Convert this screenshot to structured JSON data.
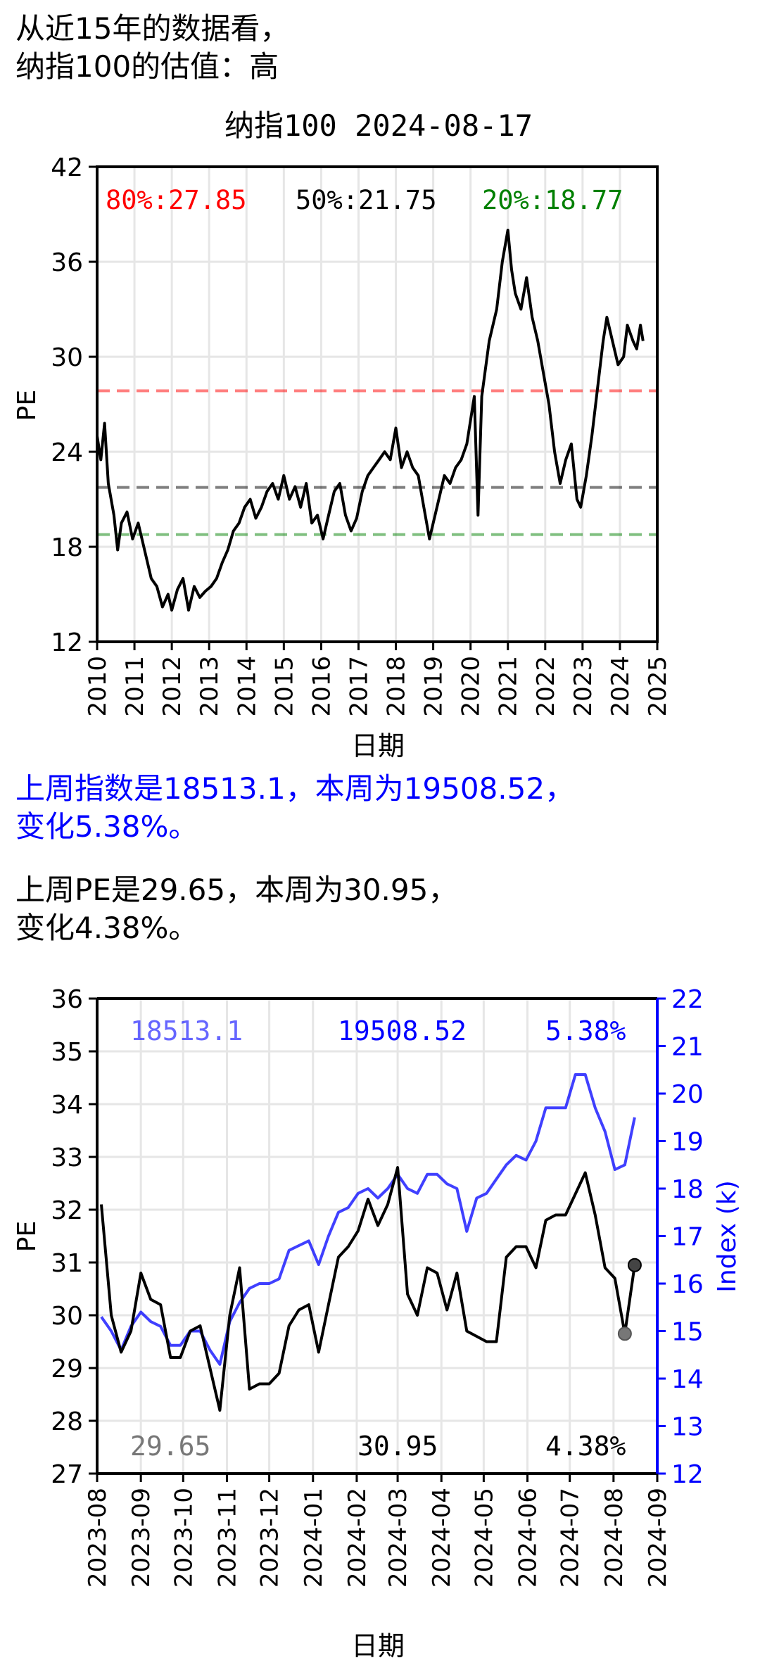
{
  "intro": {
    "line1": "从近15年的数据看，",
    "line2": "纳指100的估值：高"
  },
  "index_summary": {
    "line1": "上周指数是18513.1，本周为19508.52，",
    "line2": "变化5.38%。"
  },
  "pe_summary": {
    "line1": "上周PE是29.65，本周为30.95，",
    "line2": "变化4.38%。"
  },
  "colors": {
    "pe": "#000000",
    "index": "#0000ff",
    "p80": "#ff0000",
    "p50": "#000000",
    "p20": "#008000"
  },
  "chart_data": [
    {
      "type": "line",
      "title": "纳指100 2024-08-17",
      "xlabel": "日期",
      "ylabel": "PE",
      "xlim": [
        2010,
        2025
      ],
      "ylim": [
        12,
        42
      ],
      "yticks": [
        12,
        18,
        24,
        30,
        36,
        42
      ],
      "xticks": [
        "2010",
        "2011",
        "2012",
        "2013",
        "2014",
        "2015",
        "2016",
        "2017",
        "2018",
        "2019",
        "2020",
        "2021",
        "2022",
        "2023",
        "2024",
        "2025"
      ],
      "grid": true,
      "percentiles": [
        {
          "label": "80%:27.85",
          "value": 27.85
        },
        {
          "label": "50%:21.75",
          "value": 21.75
        },
        {
          "label": "20%:18.77",
          "value": 18.77
        }
      ],
      "series": [
        {
          "x": [
            2010.0,
            2010.1,
            2010.2,
            2010.3,
            2010.45,
            2010.55,
            2010.65,
            2010.8,
            2010.95,
            2011.1,
            2011.3,
            2011.45,
            2011.6,
            2011.75,
            2011.9,
            2012.0,
            2012.15,
            2012.3,
            2012.45,
            2012.6,
            2012.75,
            2012.9,
            2013.05,
            2013.2,
            2013.35,
            2013.5,
            2013.65,
            2013.8,
            2013.95,
            2014.1,
            2014.25,
            2014.4,
            2014.55,
            2014.7,
            2014.85,
            2015.0,
            2015.15,
            2015.3,
            2015.45,
            2015.6,
            2015.75,
            2015.9,
            2016.05,
            2016.2,
            2016.35,
            2016.5,
            2016.65,
            2016.8,
            2016.95,
            2017.1,
            2017.25,
            2017.4,
            2017.55,
            2017.7,
            2017.85,
            2018.0,
            2018.15,
            2018.3,
            2018.45,
            2018.6,
            2018.75,
            2018.9,
            2019.0,
            2019.15,
            2019.3,
            2019.45,
            2019.6,
            2019.75,
            2019.9,
            2020.0,
            2020.1,
            2020.2,
            2020.3,
            2020.5,
            2020.7,
            2020.85,
            2021.0,
            2021.1,
            2021.2,
            2021.35,
            2021.5,
            2021.65,
            2021.8,
            2021.95,
            2022.1,
            2022.25,
            2022.4,
            2022.55,
            2022.7,
            2022.85,
            2022.95,
            2023.1,
            2023.25,
            2023.4,
            2023.55,
            2023.65,
            2023.8,
            2023.95,
            2024.1,
            2024.2,
            2024.35,
            2024.45,
            2024.55,
            2024.62
          ],
          "y": [
            25.0,
            23.5,
            25.8,
            22.0,
            20.0,
            17.8,
            19.5,
            20.2,
            18.5,
            19.5,
            17.5,
            16.0,
            15.5,
            14.2,
            15.0,
            14.0,
            15.3,
            16.0,
            14.0,
            15.5,
            14.8,
            15.2,
            15.5,
            16.0,
            17.0,
            17.8,
            19.0,
            19.5,
            20.5,
            21.0,
            19.8,
            20.5,
            21.5,
            22.0,
            21.0,
            22.5,
            21.0,
            21.8,
            20.5,
            22.0,
            19.5,
            20.0,
            18.5,
            20.0,
            21.5,
            22.0,
            20.0,
            19.0,
            19.8,
            21.5,
            22.5,
            23.0,
            23.5,
            24.0,
            23.5,
            25.5,
            23.0,
            24.0,
            23.0,
            22.5,
            20.5,
            18.5,
            19.5,
            21.0,
            22.5,
            22.0,
            23.0,
            23.5,
            24.5,
            26.0,
            27.5,
            20.0,
            27.5,
            31.0,
            33.0,
            36.0,
            38.0,
            35.5,
            34.0,
            33.0,
            35.0,
            32.5,
            31.0,
            29.0,
            27.0,
            24.0,
            22.0,
            23.5,
            24.5,
            21.0,
            20.5,
            22.5,
            25.0,
            28.0,
            31.0,
            32.5,
            31.0,
            29.5,
            30.0,
            32.0,
            31.0,
            30.5,
            32.0,
            31.0
          ]
        }
      ]
    },
    {
      "type": "line",
      "xlabel": "日期",
      "ylabel": "PE",
      "ylabel_right": "Index (k)",
      "ylim": [
        27,
        36
      ],
      "ylim_right": [
        12,
        22
      ],
      "yticks": [
        27,
        28,
        29,
        30,
        31,
        32,
        33,
        34,
        35,
        36
      ],
      "yticks_right": [
        12,
        13,
        14,
        15,
        16,
        17,
        18,
        19,
        20,
        21,
        22
      ],
      "xticks": [
        "2023-08",
        "2023-09",
        "2023-10",
        "2023-11",
        "2023-12",
        "2024-01",
        "2024-02",
        "2024-03",
        "2024-04",
        "2024-05",
        "2024-06",
        "2024-07",
        "2024-08",
        "2024-09"
      ],
      "grid": true,
      "top_labels": {
        "left": "18513.1",
        "mid": "19508.52",
        "right": "5.38%"
      },
      "bottom_labels": {
        "left": "29.65",
        "mid": "30.95",
        "right": "4.38%"
      },
      "last_week_pe": 29.65,
      "this_week_pe": 30.95,
      "series": [
        {
          "name": "PE",
          "x": [
            "2023-08-04",
            "2023-08-11",
            "2023-08-18",
            "2023-08-25",
            "2023-09-01",
            "2023-09-08",
            "2023-09-15",
            "2023-09-22",
            "2023-09-29",
            "2023-10-06",
            "2023-10-13",
            "2023-10-20",
            "2023-10-27",
            "2023-11-03",
            "2023-11-10",
            "2023-11-17",
            "2023-11-24",
            "2023-12-01",
            "2023-12-08",
            "2023-12-15",
            "2023-12-22",
            "2023-12-29",
            "2024-01-05",
            "2024-01-12",
            "2024-01-19",
            "2024-01-26",
            "2024-02-02",
            "2024-02-09",
            "2024-02-16",
            "2024-02-23",
            "2024-03-01",
            "2024-03-08",
            "2024-03-15",
            "2024-03-22",
            "2024-03-29",
            "2024-04-05",
            "2024-04-12",
            "2024-04-19",
            "2024-04-26",
            "2024-05-03",
            "2024-05-10",
            "2024-05-17",
            "2024-05-24",
            "2024-05-31",
            "2024-06-07",
            "2024-06-14",
            "2024-06-21",
            "2024-06-28",
            "2024-07-05",
            "2024-07-12",
            "2024-07-19",
            "2024-07-26",
            "2024-08-02",
            "2024-08-09",
            "2024-08-16"
          ],
          "values": [
            32.1,
            30.0,
            29.3,
            29.7,
            30.8,
            30.3,
            30.2,
            29.2,
            29.2,
            29.7,
            29.8,
            29.0,
            28.2,
            30.0,
            30.9,
            28.6,
            28.7,
            28.7,
            28.9,
            29.8,
            30.1,
            30.2,
            29.3,
            30.2,
            31.1,
            31.3,
            31.6,
            32.2,
            31.7,
            32.1,
            32.8,
            30.4,
            30.0,
            30.9,
            30.8,
            30.1,
            30.8,
            29.7,
            29.6,
            29.5,
            29.5,
            31.1,
            31.3,
            31.3,
            30.9,
            31.8,
            31.9,
            31.9,
            32.3,
            32.7,
            31.9,
            30.9,
            30.7,
            29.65,
            30.95
          ]
        },
        {
          "name": "Index (k)",
          "x": [
            "2023-08-04",
            "2023-08-11",
            "2023-08-18",
            "2023-08-25",
            "2023-09-01",
            "2023-09-08",
            "2023-09-15",
            "2023-09-22",
            "2023-09-29",
            "2023-10-06",
            "2023-10-13",
            "2023-10-20",
            "2023-10-27",
            "2023-11-03",
            "2023-11-10",
            "2023-11-17",
            "2023-11-24",
            "2023-12-01",
            "2023-12-08",
            "2023-12-15",
            "2023-12-22",
            "2023-12-29",
            "2024-01-05",
            "2024-01-12",
            "2024-01-19",
            "2024-01-26",
            "2024-02-02",
            "2024-02-09",
            "2024-02-16",
            "2024-02-23",
            "2024-03-01",
            "2024-03-08",
            "2024-03-15",
            "2024-03-22",
            "2024-03-29",
            "2024-04-05",
            "2024-04-12",
            "2024-04-19",
            "2024-04-26",
            "2024-05-03",
            "2024-05-10",
            "2024-05-17",
            "2024-05-24",
            "2024-05-31",
            "2024-06-07",
            "2024-06-14",
            "2024-06-21",
            "2024-06-28",
            "2024-07-05",
            "2024-07-12",
            "2024-07-19",
            "2024-07-26",
            "2024-08-02",
            "2024-08-09",
            "2024-08-16"
          ],
          "values": [
            15.3,
            15.0,
            14.6,
            15.1,
            15.4,
            15.2,
            15.1,
            14.7,
            14.7,
            15.0,
            15.0,
            14.6,
            14.3,
            15.2,
            15.6,
            15.9,
            16.0,
            16.0,
            16.1,
            16.7,
            16.8,
            16.9,
            16.4,
            17.0,
            17.5,
            17.6,
            17.9,
            18.0,
            17.8,
            18.0,
            18.3,
            18.0,
            17.9,
            18.3,
            18.3,
            18.1,
            18.0,
            17.1,
            17.8,
            17.9,
            18.2,
            18.5,
            18.7,
            18.6,
            19.0,
            19.7,
            19.7,
            19.7,
            20.4,
            20.4,
            19.7,
            19.2,
            18.4,
            18.5,
            19.5
          ]
        }
      ]
    }
  ]
}
